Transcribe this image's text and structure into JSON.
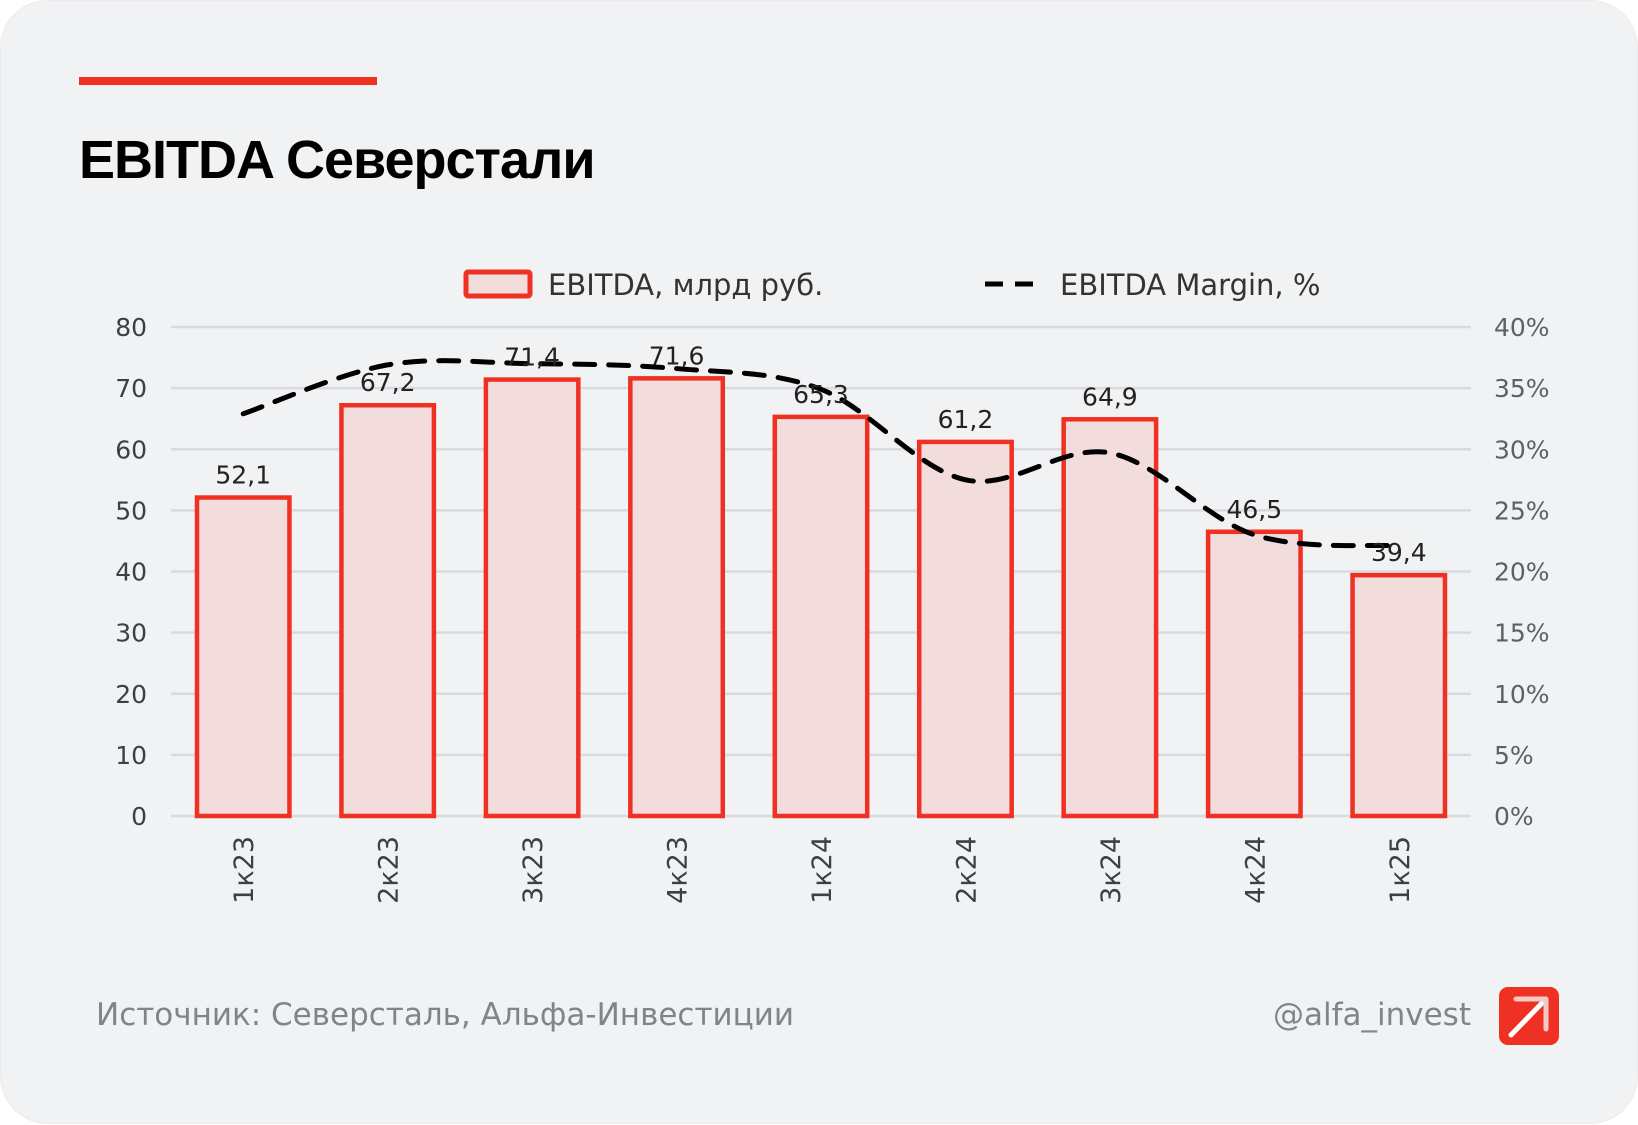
{
  "card": {
    "title": "EBITDA Северстали",
    "accent_color": "#ef3124",
    "footer": {
      "source": "Источник: Северсталь, Альфа-Инвестиции",
      "handle": "@alfa_invest",
      "logo_icon": "alfa-arrow-logo-icon"
    }
  },
  "chart_data": {
    "type": "bar",
    "title": "EBITDA Северстали",
    "categories": [
      "1к23",
      "2к23",
      "3к23",
      "4к23",
      "1к24",
      "2к24",
      "3к24",
      "4к24",
      "1к25"
    ],
    "series": [
      {
        "name": "EBITDA, млрд руб.",
        "type": "bar",
        "axis": "left",
        "values": [
          52.1,
          67.2,
          71.4,
          71.6,
          65.3,
          61.2,
          64.9,
          46.5,
          39.4
        ],
        "labels": [
          "52,1",
          "67,2",
          "71,4",
          "71,6",
          "65,3",
          "61,2",
          "64,9",
          "46,5",
          "39,4"
        ],
        "fill": "#f3dcdc",
        "stroke": "#ef3124"
      },
      {
        "name": "EBITDA Margin, %",
        "type": "line",
        "style": "dashed",
        "axis": "right",
        "values": [
          32.9,
          36.9,
          37.0,
          36.6,
          34.9,
          27.5,
          29.7,
          23.0,
          22.1
        ],
        "color": "#000000"
      }
    ],
    "xlabel": "",
    "ylabel": "",
    "ylim": [
      0,
      80
    ],
    "yticks": [
      "0",
      "10",
      "20",
      "30",
      "40",
      "50",
      "60",
      "70",
      "80"
    ],
    "y2lim": [
      0,
      40
    ],
    "y2ticks": [
      "0%",
      "5%",
      "10%",
      "15%",
      "20%",
      "25%",
      "30%",
      "35%",
      "40%"
    ],
    "grid": true,
    "legend": "top-center"
  }
}
